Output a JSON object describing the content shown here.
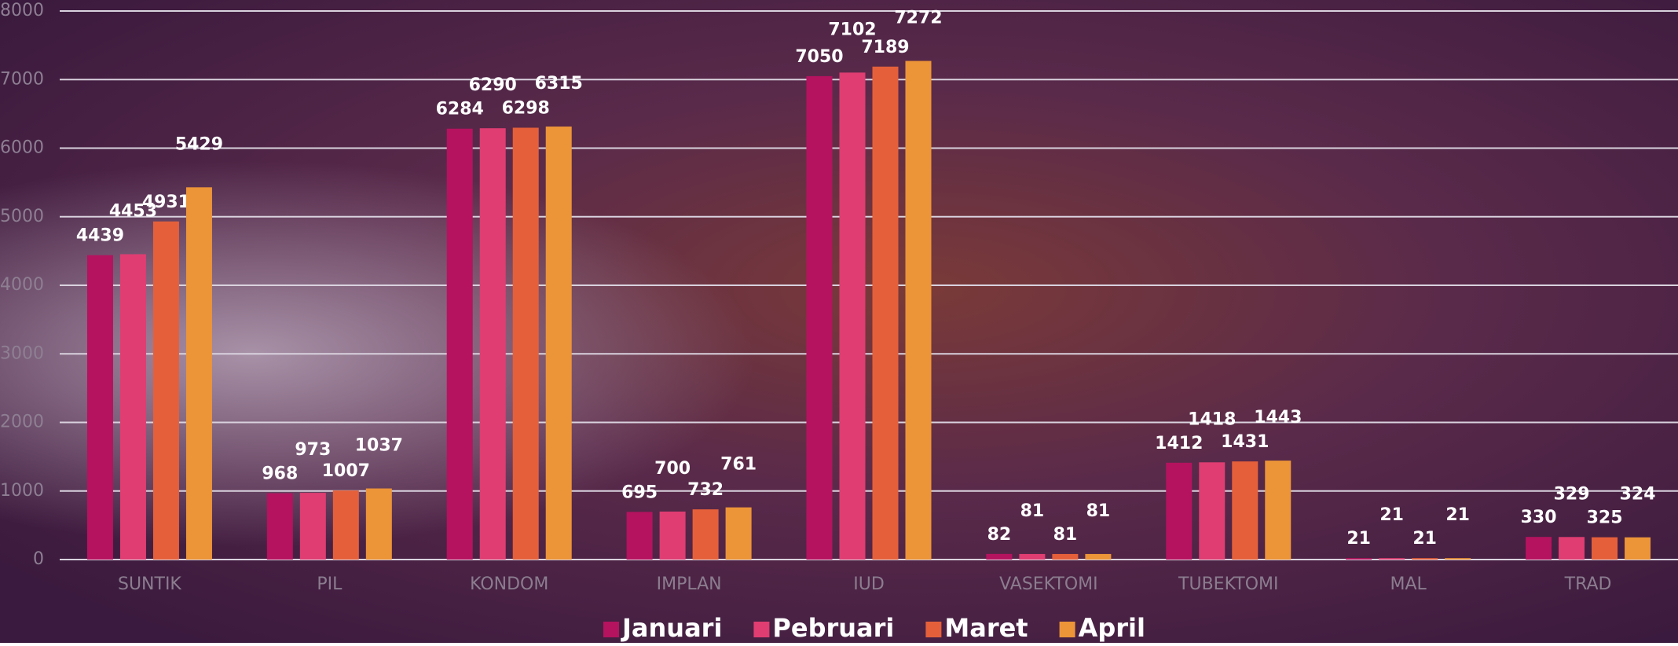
{
  "chart_data": {
    "type": "bar",
    "categories": [
      "SUNTIK",
      "PIL",
      "KONDOM",
      "IMPLAN",
      "IUD",
      "VASEKTOMI",
      "TUBEKTOMI",
      "MAL",
      "TRAD"
    ],
    "series": [
      {
        "name": "Januari",
        "color": "#b5135f",
        "values": [
          4439,
          968,
          6284,
          695,
          7050,
          82,
          1412,
          21,
          330
        ]
      },
      {
        "name": "Pebruari",
        "color": "#e03d72",
        "values": [
          4453,
          973,
          6290,
          700,
          7102,
          81,
          1418,
          21,
          329
        ]
      },
      {
        "name": "Maret",
        "color": "#e5603a",
        "values": [
          4931,
          1007,
          6298,
          732,
          7189,
          81,
          1431,
          21,
          325
        ]
      },
      {
        "name": "April",
        "color": "#ec9438",
        "values": [
          5429,
          1037,
          6315,
          761,
          7272,
          81,
          1443,
          21,
          324
        ]
      }
    ],
    "ylim": [
      0,
      8000
    ],
    "yticks": [
      0,
      1000,
      2000,
      3000,
      4000,
      5000,
      6000,
      7000,
      8000
    ],
    "grid": true,
    "legend": "bottom"
  }
}
